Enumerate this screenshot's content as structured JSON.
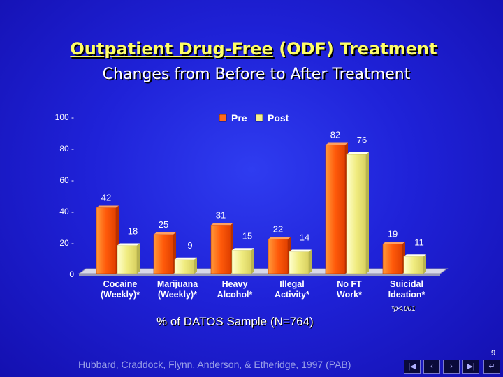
{
  "slide": {
    "title_underlined": "Outpatient Drug-Free",
    "title_rest": " (ODF) Treatment",
    "subtitle": "Changes from Before to After Treatment",
    "sample_label": "% of DATOS Sample (N=764)",
    "significance_note": "*p<.001",
    "citation_before": "Hubbard, Craddock, Flynn, Anderson, & Etheridge, 1997 (",
    "citation_link": "PAB",
    "citation_after": ")",
    "page_number": "9"
  },
  "nav": {
    "first_icon": "first-slide-icon",
    "prev_icon": "previous-slide-icon",
    "next_icon": "next-slide-icon",
    "last_icon": "last-slide-icon",
    "return_icon": "return-icon"
  },
  "chart_data": {
    "type": "bar",
    "categories": [
      [
        "Cocaine",
        "(Weekly)*"
      ],
      [
        "Marijuana",
        "(Weekly)*"
      ],
      [
        "Heavy",
        "Alcohol*"
      ],
      [
        "Illegal",
        "Activity*"
      ],
      [
        "No FT",
        "Work*"
      ],
      [
        "Suicidal",
        "Ideation*"
      ]
    ],
    "series": [
      {
        "name": "Pre",
        "values": [
          42,
          25,
          31,
          22,
          82,
          19
        ],
        "color": "#ff6a1a"
      },
      {
        "name": "Post",
        "values": [
          18,
          9,
          15,
          14,
          76,
          11
        ],
        "color": "#f4f08a"
      }
    ],
    "yticks": [
      "100",
      "80",
      "60",
      "40",
      "20",
      "0"
    ],
    "ylim": [
      0,
      100
    ],
    "legend_position": "top",
    "grid": false
  }
}
